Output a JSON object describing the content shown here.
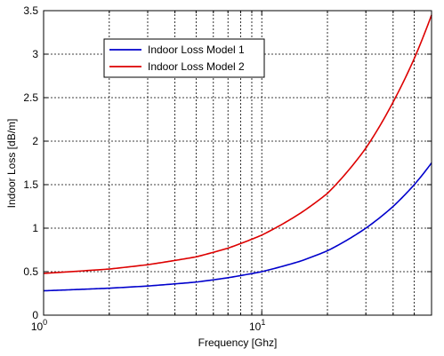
{
  "chart_data": {
    "type": "line",
    "title": "",
    "xlabel": "Frequency [Ghz]",
    "ylabel": "Indoor Loss [dB/m]",
    "xscale": "log",
    "xlim": [
      1,
      60
    ],
    "ylim": [
      0,
      3.5
    ],
    "grid": true,
    "legend_position": "top-left",
    "x_ticks": [
      {
        "value": 1,
        "base": "10",
        "exp": "0"
      },
      {
        "value": 10,
        "base": "10",
        "exp": "1"
      }
    ],
    "y_ticks": [
      "0",
      "0.5",
      "1",
      "1.5",
      "2",
      "2.5",
      "3",
      "3.5"
    ],
    "y_tick_values": [
      0,
      0.5,
      1,
      1.5,
      2,
      2.5,
      3,
      3.5
    ],
    "x": [
      1,
      2,
      3,
      5,
      7,
      10,
      15,
      20,
      30,
      40,
      50,
      60
    ],
    "series": [
      {
        "name": "Indoor Loss Model 1",
        "color": "#0000cc",
        "values": [
          0.28,
          0.31,
          0.335,
          0.38,
          0.43,
          0.5,
          0.62,
          0.74,
          1.0,
          1.25,
          1.5,
          1.75
        ]
      },
      {
        "name": "Indoor Loss Model 2",
        "color": "#dd0000",
        "values": [
          0.48,
          0.53,
          0.58,
          0.67,
          0.77,
          0.92,
          1.17,
          1.4,
          1.92,
          2.45,
          2.95,
          3.45
        ]
      }
    ]
  }
}
